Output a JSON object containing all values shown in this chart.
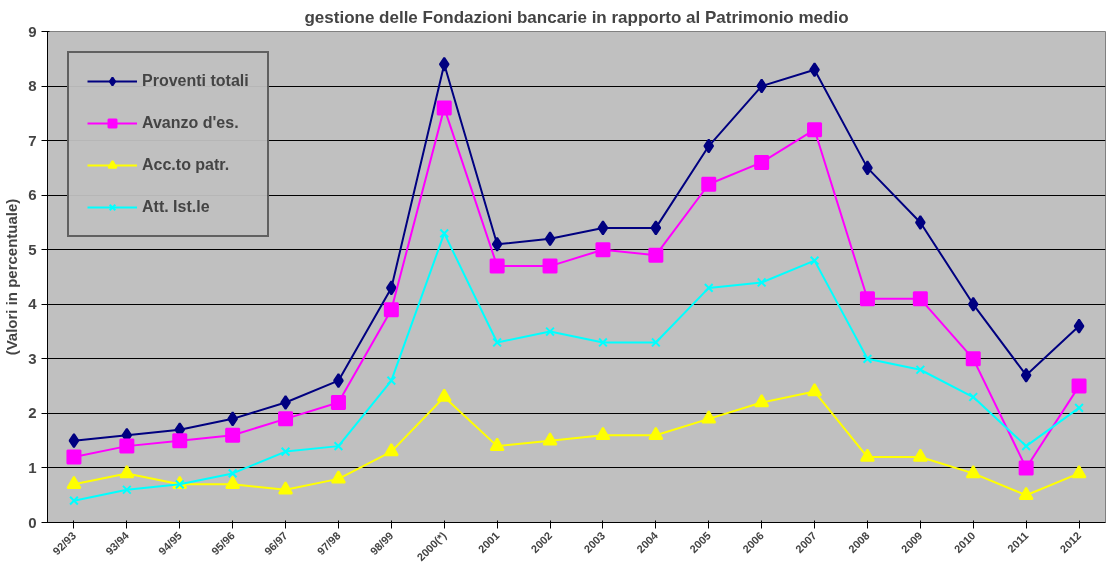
{
  "chart_data": {
    "type": "line",
    "title": "gestione delle Fondazioni bancarie in rapporto al Patrimonio medio",
    "ylabel": "(Valori in percentuale)",
    "categories": [
      "92/93",
      "93/94",
      "94/95",
      "95/96",
      "96/97",
      "97/98",
      "98/99",
      "2000(*)",
      "2001",
      "2002",
      "2003",
      "2004",
      "2005",
      "2006",
      "2007",
      "2008",
      "2009",
      "2010",
      "2011",
      "2012"
    ],
    "ylim": [
      0,
      9
    ],
    "yticks": [
      0,
      1,
      2,
      3,
      4,
      5,
      6,
      7,
      8,
      9
    ],
    "grid": "y",
    "legend": "top left",
    "series": [
      {
        "name": "Proventi totali",
        "color": "#000080",
        "marker": "diamond",
        "values": [
          1.5,
          1.6,
          1.7,
          1.9,
          2.2,
          2.6,
          4.3,
          8.4,
          5.1,
          5.2,
          5.4,
          5.4,
          6.9,
          8.0,
          8.3,
          6.5,
          5.5,
          4.0,
          2.7,
          3.6
        ]
      },
      {
        "name": "Avanzo d'es.",
        "color": "#ff00ff",
        "marker": "square",
        "values": [
          1.2,
          1.4,
          1.5,
          1.6,
          1.9,
          2.2,
          3.9,
          7.6,
          4.7,
          4.7,
          5.0,
          4.9,
          6.2,
          6.6,
          7.2,
          4.1,
          4.1,
          3.0,
          1.0,
          2.5
        ]
      },
      {
        "name": "Acc.to patr.",
        "color": "#ffff00",
        "marker": "triangle",
        "values": [
          0.7,
          0.9,
          0.7,
          0.7,
          0.6,
          0.8,
          1.3,
          2.3,
          1.4,
          1.5,
          1.6,
          1.6,
          1.9,
          2.2,
          2.4,
          1.2,
          1.2,
          0.9,
          0.5,
          0.9
        ]
      },
      {
        "name": "Att. Ist.le",
        "color": "#00ffff",
        "marker": "cross",
        "values": [
          0.4,
          0.6,
          0.7,
          0.9,
          1.3,
          1.4,
          2.6,
          5.3,
          3.3,
          3.5,
          3.3,
          3.3,
          4.3,
          4.4,
          4.8,
          3.0,
          2.8,
          2.3,
          1.4,
          2.1
        ]
      }
    ]
  }
}
